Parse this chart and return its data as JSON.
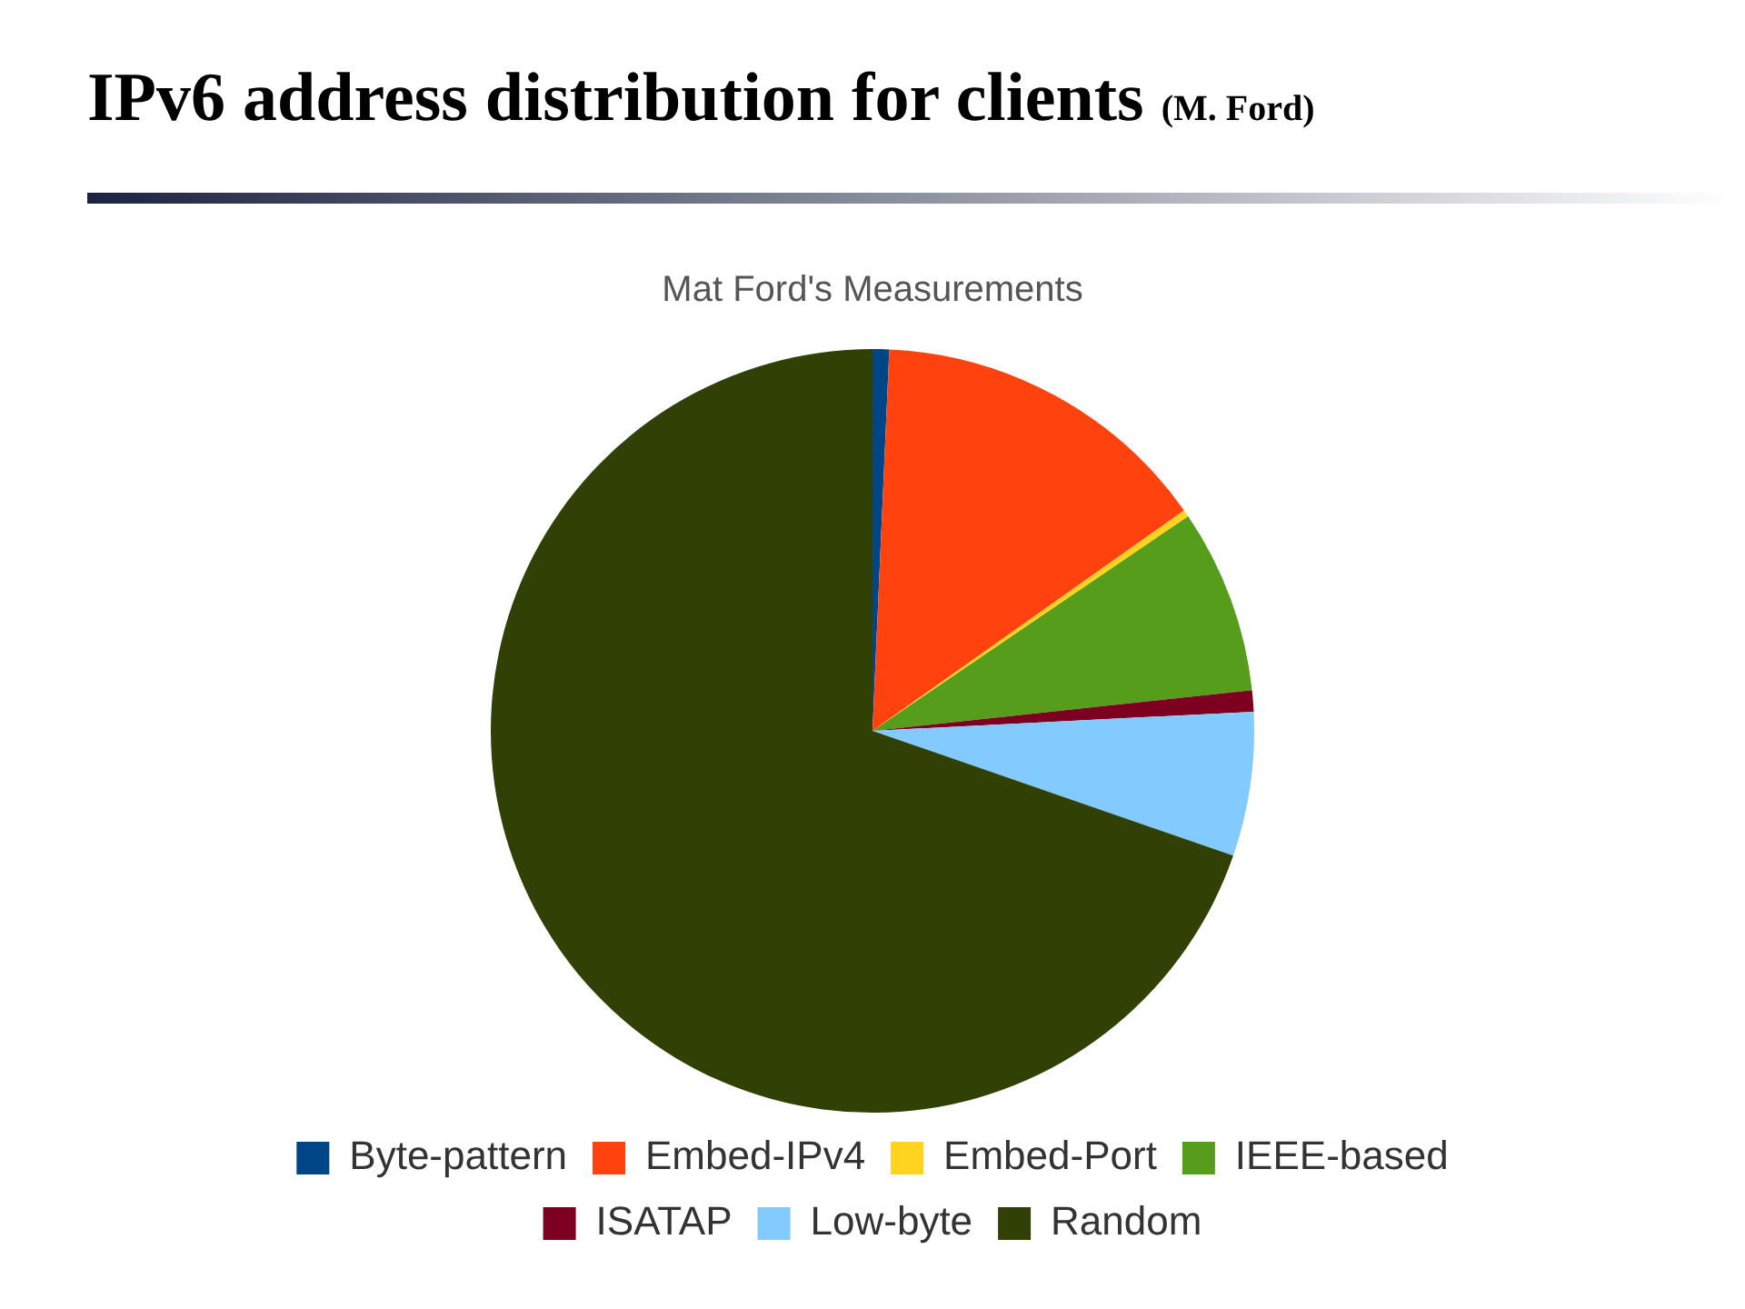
{
  "chart_data": {
    "type": "pie",
    "title": "IPv6 address distribution for clients",
    "subtitle": "(M. Ford)",
    "annotations": [
      "Mat Ford's Measurements"
    ],
    "categories": [
      "Byte-pattern",
      "Embed-IPv4",
      "Embed-Port",
      "IEEE-based",
      "ISATAP",
      "Low-byte",
      "Random"
    ],
    "values": [
      0.7,
      14.5,
      0.3,
      7.8,
      0.9,
      6.1,
      69.7
    ],
    "colors": [
      "#004586",
      "#ff420e",
      "#ffd320",
      "#579d1c",
      "#7e0021",
      "#83caff",
      "#314004"
    ],
    "legend": "bottom"
  }
}
